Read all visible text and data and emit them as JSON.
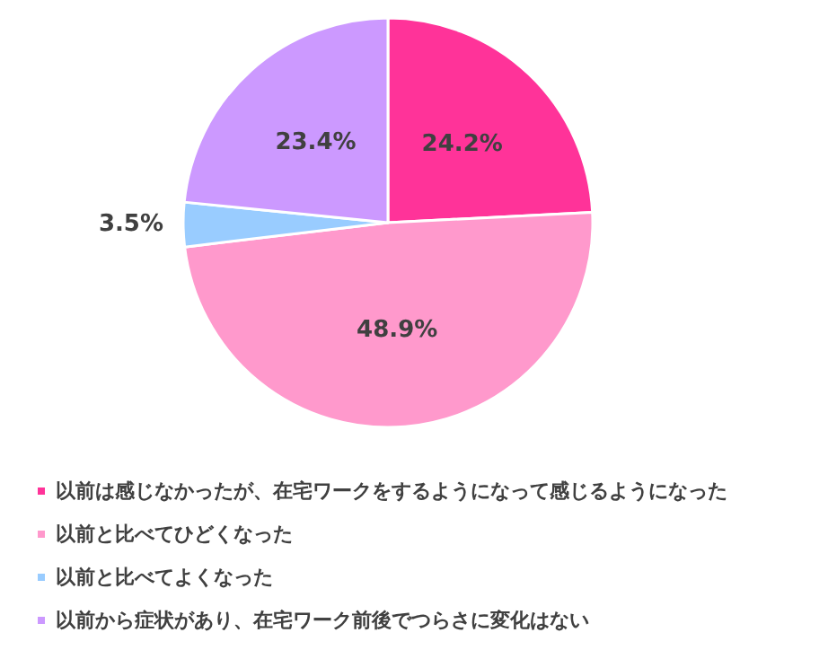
{
  "chart_data": {
    "type": "pie",
    "categories": [
      "以前は感じなかったが、在宅ワークをするようになって感じるようになった",
      "以前と比べてひどくなった",
      "以前と比べてよくなった",
      "以前から症状があり、在宅ワーク前後でつらさに変化はない"
    ],
    "values": [
      24.2,
      48.9,
      3.5,
      23.4
    ],
    "value_labels": [
      "24.2%",
      "48.9%",
      "3.5%",
      "23.4%"
    ],
    "colors": [
      "#ff3399",
      "#ff99cc",
      "#99ccff",
      "#cc99ff"
    ],
    "legend": "bottom left"
  }
}
